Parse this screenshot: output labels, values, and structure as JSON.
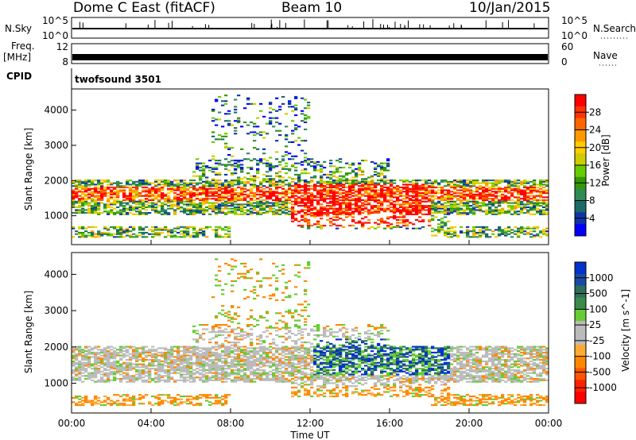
{
  "header": {
    "station": "Dome C East (fitACF)",
    "beam": "Beam 10",
    "date": "10/Jan/2015"
  },
  "strips": {
    "nsky": {
      "label": "N.Sky",
      "left_ticks": [
        "10^5",
        "10^0"
      ],
      "right_ticks": [
        "10^5",
        "10^0"
      ],
      "right_label": "N.Search"
    },
    "freq": {
      "label_line1": "Freq.",
      "label_line2": "[MHz]",
      "left_ticks": [
        "12",
        "8"
      ],
      "right_ticks": [
        "60",
        "0"
      ],
      "right_label": "Nave"
    },
    "cpid": {
      "label": "CPID",
      "value": "twofsound 3501"
    }
  },
  "chart_data": [
    {
      "type": "heatmap",
      "quantity": "Power",
      "ylabel": "Slant Range [km]",
      "yticks": [
        1000,
        2000,
        3000,
        4000
      ],
      "ylim": [
        180,
        4600
      ],
      "xlim_hours": [
        0,
        24
      ],
      "colorbar": {
        "label": "Power [dB]",
        "ticks": [
          "28",
          "24",
          "20",
          "16",
          "12",
          "8",
          "4"
        ],
        "colors": [
          "#ff0000",
          "#ff3300",
          "#ff6600",
          "#ff9900",
          "#ffcc00",
          "#cccc00",
          "#66cc00",
          "#339900",
          "#2e8b57",
          "#1a6b66",
          "#1133aa",
          "#0000ff"
        ]
      }
    },
    {
      "type": "heatmap",
      "quantity": "Velocity",
      "ylabel": "Slant Range [km]",
      "yticks": [
        1000,
        2000,
        3000,
        4000
      ],
      "ylim": [
        180,
        4600
      ],
      "xlim_hours": [
        0,
        24
      ],
      "colorbar": {
        "label": "Velocity [m s^-1]",
        "ticks": [
          "1000",
          "500",
          "100",
          "25",
          "-25",
          "-100",
          "-500",
          "-1000"
        ],
        "colors": [
          "#0033cc",
          "#1a4aa6",
          "#2e6e5a",
          "#3a8a4a",
          "#66cc33",
          "#bbbbbb",
          "#bbbbbb",
          "#ffaa33",
          "#ff8800",
          "#ff5500",
          "#ff2200",
          "#ff0000"
        ]
      }
    }
  ],
  "x_axis": {
    "ticks": [
      "00:00",
      "04:00",
      "08:00",
      "12:00",
      "16:00",
      "20:00",
      "00:00"
    ],
    "label": "Time UT"
  }
}
